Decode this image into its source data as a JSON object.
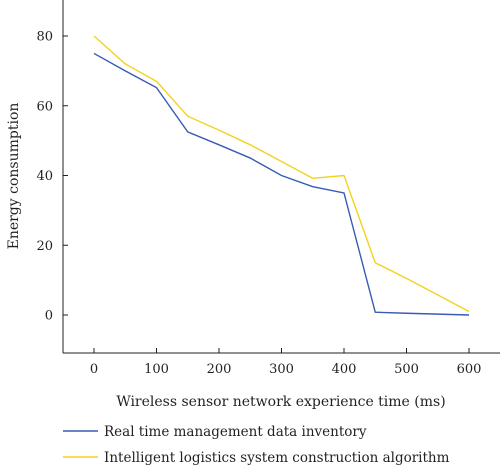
{
  "chart_data": {
    "type": "line",
    "xlabel": "Wireless sensor network experience time (ms)",
    "ylabel": "Energy consumption",
    "xlim": [
      -50,
      640
    ],
    "ylim": [
      -10,
      90
    ],
    "xticks": [
      0,
      100,
      200,
      300,
      400,
      500,
      600
    ],
    "yticks": [
      0,
      20,
      40,
      60,
      80
    ],
    "grid": false,
    "legend_position": "bottom",
    "series": [
      {
        "name": "Real time management data inventory",
        "color": "#3a5bb4",
        "x": [
          0,
          50,
          100,
          150,
          200,
          250,
          300,
          350,
          400,
          450,
          500,
          600
        ],
        "y": [
          75,
          70,
          65.2,
          52.5,
          48.8,
          45,
          40,
          36.8,
          35,
          0.8,
          0.5,
          0
        ]
      },
      {
        "name": "Intelligent logistics system construction algorithm",
        "color": "#f2d21f",
        "x": [
          0,
          50,
          100,
          150,
          200,
          250,
          300,
          350,
          400,
          450,
          500,
          600
        ],
        "y": [
          80,
          72,
          67,
          57,
          53,
          48.8,
          44,
          39.2,
          40,
          15,
          10.5,
          1
        ]
      }
    ]
  }
}
